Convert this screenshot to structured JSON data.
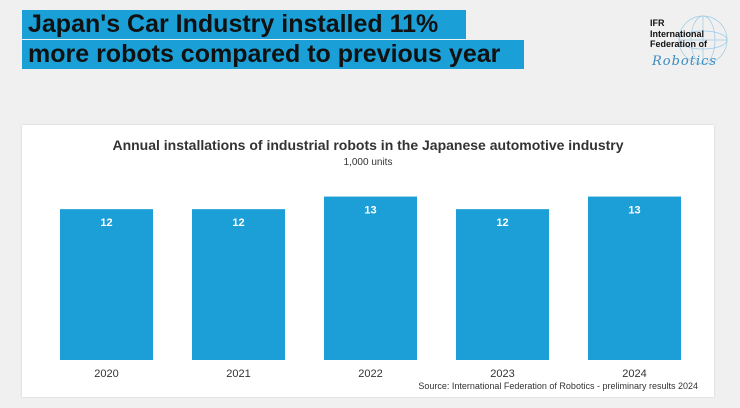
{
  "headline": {
    "line1": "Japan's Car Industry installed 11%",
    "line2": "more robots compared to previous year"
  },
  "logo": {
    "line1": "IFR",
    "line2": "International",
    "line3": "Federation of",
    "line4": "Robotics"
  },
  "colors": {
    "accent": "#1a9fd6",
    "bar": "#1b9fd6",
    "background": "#f0f0f0"
  },
  "chart_data": {
    "type": "bar",
    "title": "Annual installations of industrial robots in the Japanese automotive industry",
    "subtitle": "1,000 units",
    "categories": [
      "2020",
      "2021",
      "2022",
      "2023",
      "2024"
    ],
    "values": [
      12,
      12,
      13,
      12,
      13
    ],
    "data_labels": [
      "12",
      "12",
      "13",
      "12",
      "13"
    ],
    "ylim": [
      0,
      14
    ],
    "xlabel": "",
    "ylabel": "",
    "grid": false,
    "source": "Source: International Federation of Robotics - preliminary results 2024"
  }
}
